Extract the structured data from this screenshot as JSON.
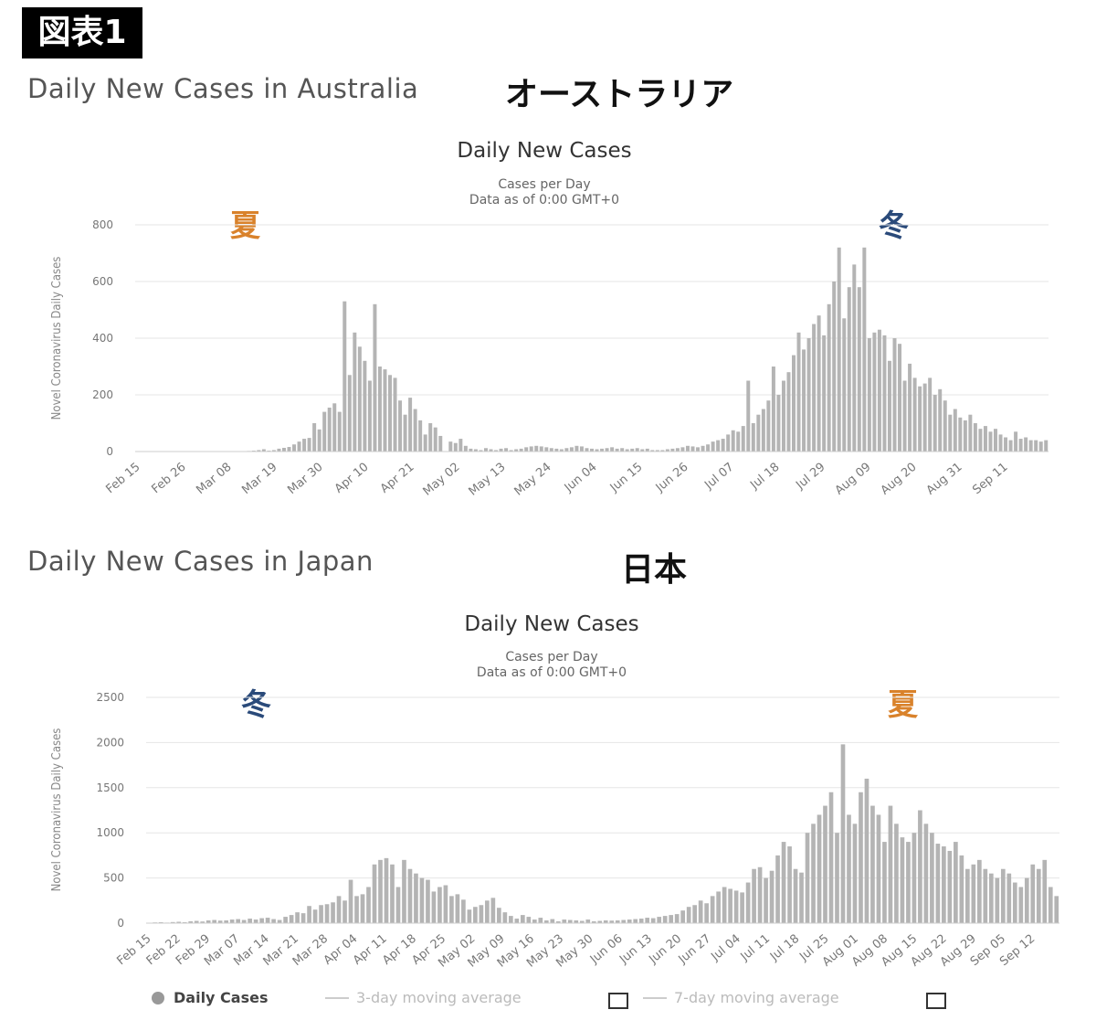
{
  "figure_label": "図表1",
  "charts_meta": [
    {
      "section_title": "Daily New Cases in Australia",
      "jp_title": "オーストラリア",
      "title": "Daily New Cases",
      "subtitle1": "Cases per Day",
      "subtitle2": "Data as of 0:00 GMT+0",
      "season_left": "夏",
      "season_left_color": "#d9822b",
      "season_right": "冬",
      "season_right_color": "#2a4a7a"
    },
    {
      "section_title": "Daily New Cases in Japan",
      "jp_title": "日本",
      "title": "Daily New Cases",
      "subtitle1": "Cases per Day",
      "subtitle2": "Data as of 0:00 GMT+0",
      "season_left": "冬",
      "season_left_color": "#2a4a7a",
      "season_right": "夏",
      "season_right_color": "#d9822b"
    }
  ],
  "legend": {
    "daily": "Daily Cases",
    "ma3": "3-day moving average",
    "ma7": "7-day moving average"
  },
  "colors": {
    "bar": "#b4b4b4",
    "grid": "#e6e6e6",
    "axis_text": "#777777"
  },
  "chart_data": [
    {
      "type": "bar",
      "title": "Daily New Cases",
      "ylabel": "Novel Coronavirus Daily Cases",
      "ylim": [
        0,
        800
      ],
      "yticks": [
        0,
        200,
        400,
        600,
        800
      ],
      "x_ticks": [
        "Feb 15",
        "Feb 26",
        "Mar 08",
        "Mar 19",
        "Mar 30",
        "Apr 10",
        "Apr 21",
        "May 02",
        "May 13",
        "May 24",
        "Jun 04",
        "Jun 15",
        "Jun 26",
        "Jul 07",
        "Jul 18",
        "Jul 29",
        "Aug 09",
        "Aug 20",
        "Aug 31",
        "Sep 11"
      ],
      "x_start": "Feb 15",
      "series": [
        {
          "name": "Daily Cases",
          "values": [
            0,
            0,
            0,
            0,
            0,
            0,
            0,
            0,
            0,
            0,
            0,
            0,
            0,
            0,
            0,
            0,
            0,
            0,
            0,
            0,
            0,
            0,
            2,
            3,
            5,
            8,
            3,
            5,
            10,
            13,
            16,
            25,
            35,
            45,
            48,
            100,
            78,
            140,
            155,
            170,
            140,
            530,
            270,
            420,
            370,
            320,
            250,
            520,
            300,
            290,
            270,
            260,
            180,
            130,
            190,
            150,
            110,
            60,
            100,
            85,
            55,
            0,
            35,
            30,
            45,
            20,
            10,
            8,
            5,
            12,
            8,
            5,
            10,
            12,
            5,
            8,
            10,
            15,
            18,
            20,
            18,
            15,
            12,
            10,
            8,
            12,
            15,
            20,
            18,
            12,
            10,
            8,
            10,
            12,
            15,
            10,
            12,
            8,
            10,
            12,
            8,
            10,
            5,
            5,
            5,
            8,
            10,
            12,
            15,
            20,
            18,
            15,
            20,
            25,
            35,
            40,
            45,
            60,
            75,
            70,
            90,
            250,
            100,
            130,
            150,
            180,
            300,
            200,
            250,
            280,
            340,
            420,
            360,
            400,
            450,
            480,
            410,
            520,
            600,
            720,
            470,
            580,
            660,
            580,
            720,
            400,
            420,
            430,
            410,
            320,
            400,
            380,
            250,
            310,
            260,
            230,
            240,
            260,
            200,
            220,
            180,
            130,
            150,
            120,
            110,
            130,
            100,
            80,
            90,
            70,
            80,
            60,
            50,
            40,
            70,
            45,
            50,
            40,
            40,
            35,
            40
          ]
        }
      ]
    },
    {
      "type": "bar",
      "title": "Daily New Cases",
      "ylabel": "Novel Coronavirus Daily Cases",
      "ylim": [
        0,
        2500
      ],
      "yticks": [
        0,
        500,
        1000,
        1500,
        2000,
        2500
      ],
      "x_ticks": [
        "Feb 15",
        "Feb 22",
        "Feb 29",
        "Mar 07",
        "Mar 14",
        "Mar 21",
        "Mar 28",
        "Apr 04",
        "Apr 11",
        "Apr 18",
        "Apr 25",
        "May 02",
        "May 09",
        "May 16",
        "May 23",
        "May 30",
        "Jun 06",
        "Jun 13",
        "Jun 20",
        "Jun 27",
        "Jul 04",
        "Jul 11",
        "Jul 18",
        "Jul 25",
        "Aug 01",
        "Aug 08",
        "Aug 15",
        "Aug 22",
        "Aug 29",
        "Sep 05",
        "Sep 12"
      ],
      "x_start": "Feb 15",
      "series": [
        {
          "name": "Daily Cases",
          "values": [
            5,
            8,
            10,
            6,
            12,
            15,
            10,
            20,
            25,
            18,
            30,
            35,
            28,
            30,
            40,
            45,
            35,
            50,
            40,
            55,
            60,
            45,
            35,
            70,
            90,
            120,
            110,
            190,
            150,
            200,
            210,
            230,
            300,
            250,
            480,
            300,
            320,
            400,
            650,
            700,
            720,
            650,
            400,
            700,
            600,
            550,
            500,
            480,
            350,
            400,
            420,
            300,
            320,
            260,
            150,
            180,
            200,
            250,
            280,
            170,
            120,
            80,
            50,
            90,
            70,
            40,
            60,
            30,
            45,
            20,
            40,
            35,
            30,
            25,
            40,
            20,
            25,
            30,
            28,
            30,
            35,
            40,
            45,
            50,
            60,
            55,
            70,
            80,
            90,
            100,
            140,
            180,
            200,
            250,
            220,
            300,
            350,
            400,
            380,
            360,
            340,
            450,
            600,
            620,
            500,
            580,
            750,
            900,
            850,
            600,
            560,
            1000,
            1100,
            1200,
            1300,
            1450,
            1000,
            1980,
            1200,
            1100,
            1450,
            1600,
            1300,
            1200,
            900,
            1300,
            1100,
            950,
            900,
            1000,
            1250,
            1100,
            1000,
            880,
            850,
            800,
            900,
            750,
            600,
            650,
            700,
            600,
            550,
            500,
            600,
            550,
            450,
            400,
            500,
            650,
            600,
            700,
            400,
            300
          ]
        }
      ]
    }
  ]
}
